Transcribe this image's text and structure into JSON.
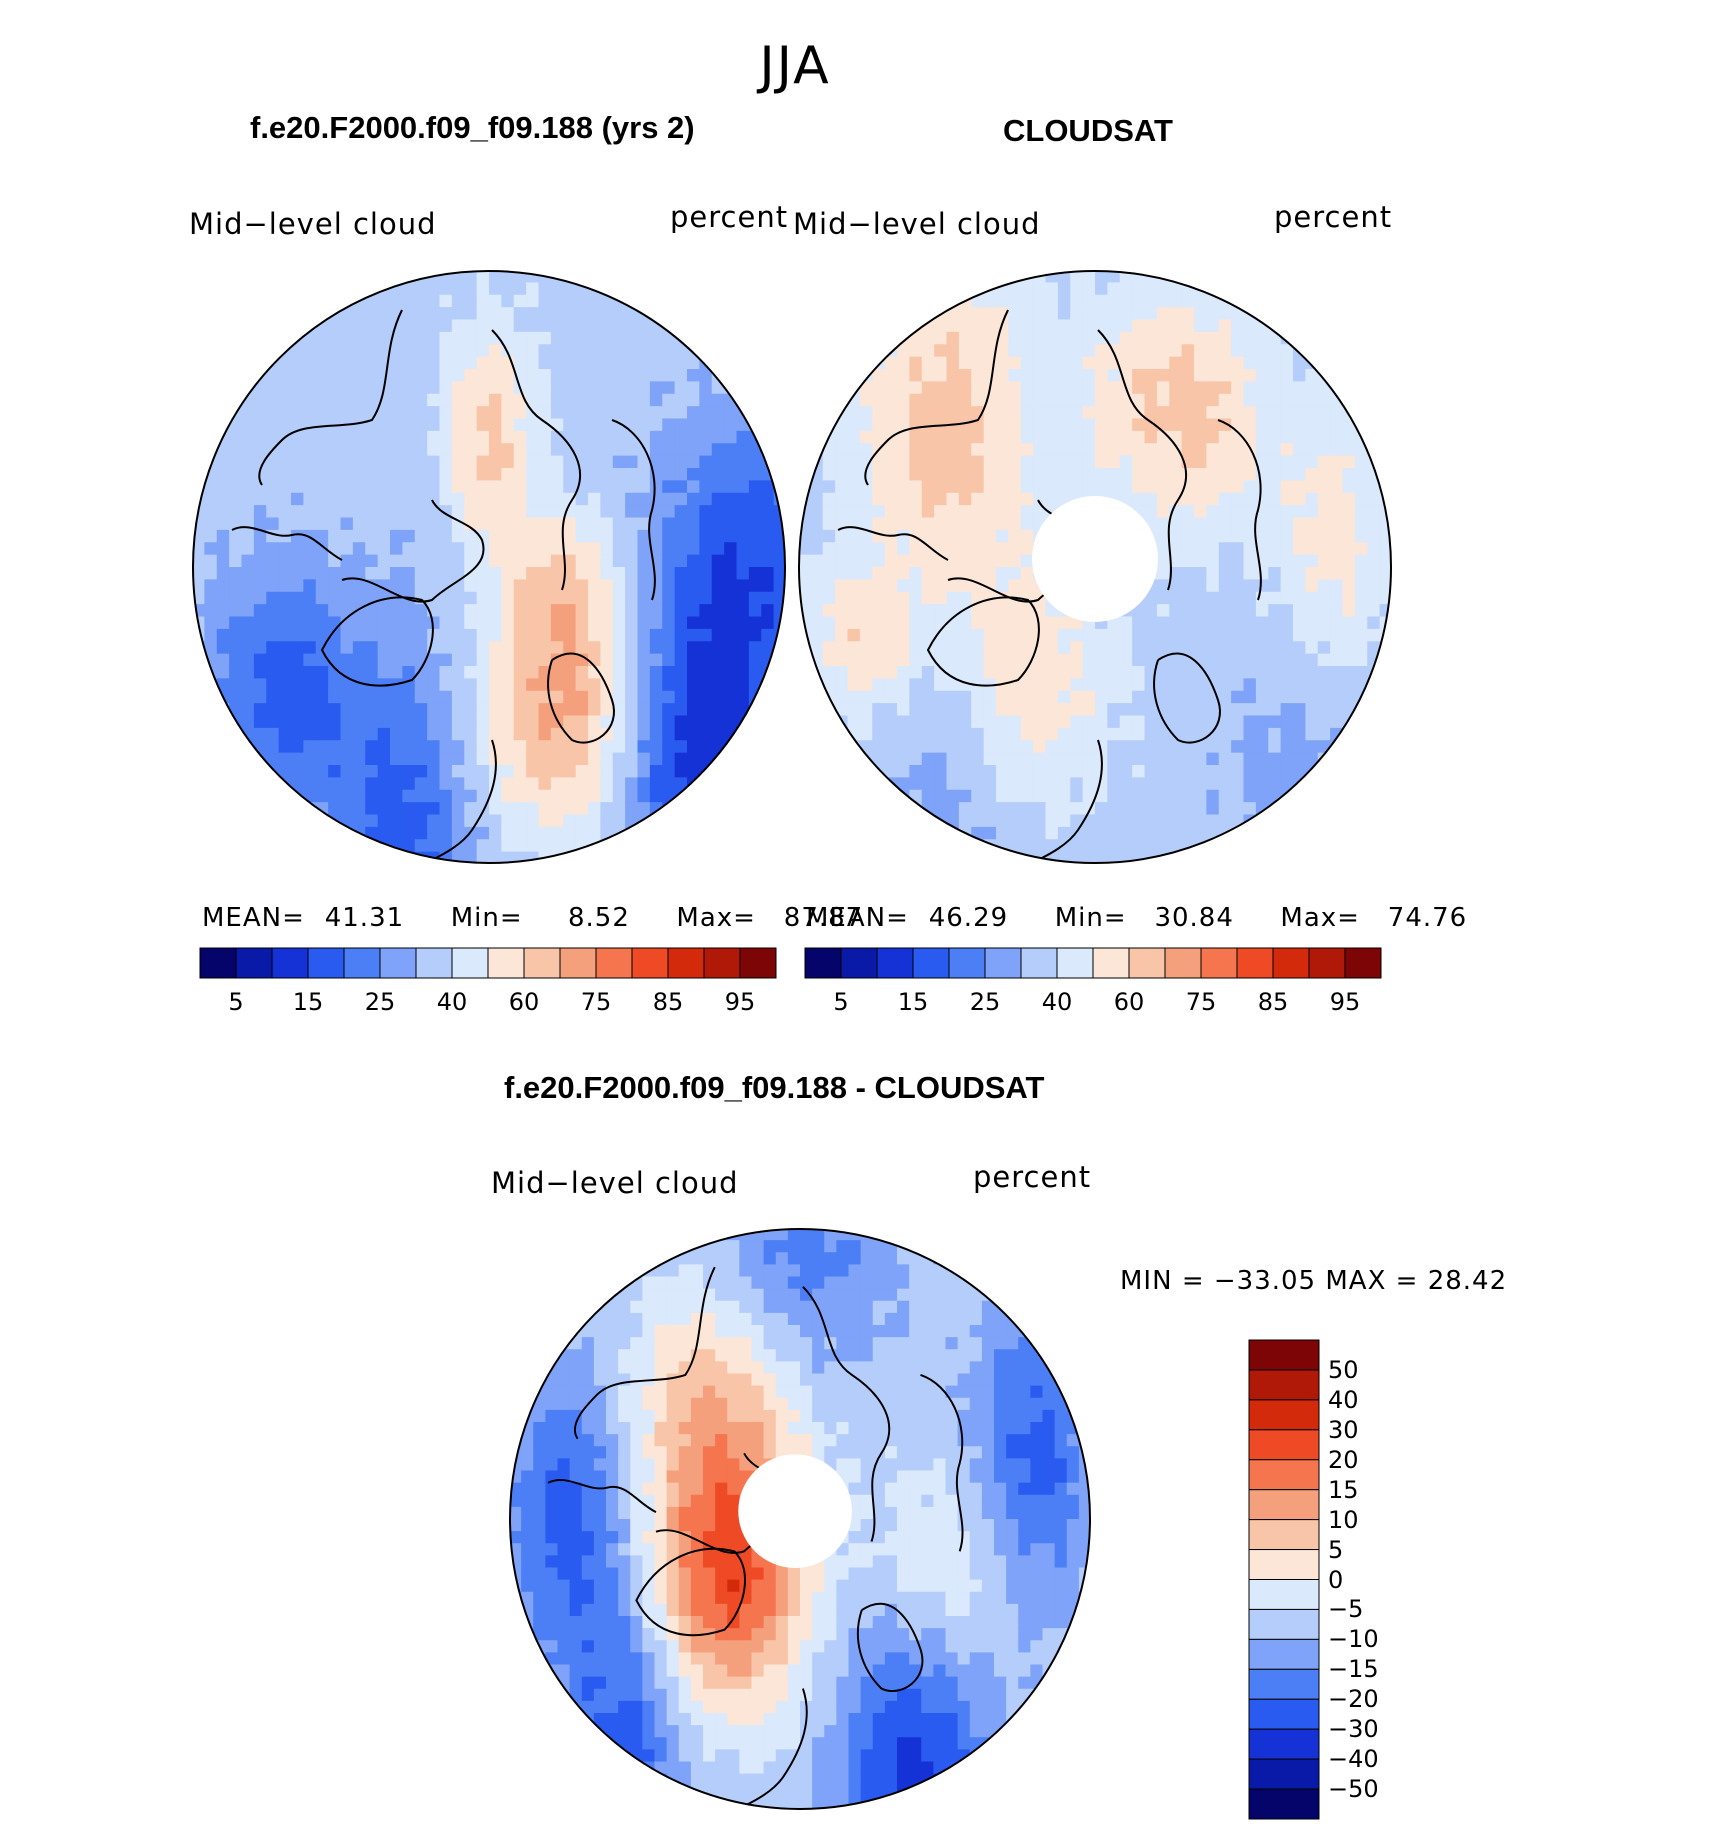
{
  "figure": {
    "season": "JJA"
  },
  "colors": {
    "scale15": [
      "#04046a",
      "#0a1aa8",
      "#1432d6",
      "#2a5bf0",
      "#4c7ff6",
      "#7ea3f8",
      "#b4cdfa",
      "#dbe9fc",
      "#fbe6d8",
      "#f8c5a8",
      "#f5a07c",
      "#f5754e",
      "#ef4a26",
      "#d42a0c",
      "#b01808",
      "#7e0505"
    ],
    "diff15": [
      "#04046a",
      "#0a1aa8",
      "#1432d6",
      "#2a5bf0",
      "#4c7ff6",
      "#7ea3f8",
      "#b4cdfa",
      "#dbe9fc",
      "#fbe6d8",
      "#f8c5a8",
      "#f5a07c",
      "#f5754e",
      "#ef4a26",
      "#d42a0c",
      "#b01808",
      "#7e0505"
    ]
  },
  "panels": [
    {
      "title": "f.e20.F2000.f09_f09.188 (yrs 2)",
      "left_label": "Mid−level cloud",
      "right_label": "percent",
      "stats": {
        "mean_label": "MEAN=",
        "mean": "41.31",
        "min_label": "Min=",
        "min": "8.52",
        "max_label": "Max=",
        "max": "87.87"
      },
      "colorbar_ticks": [
        "5",
        "15",
        "25",
        "40",
        "60",
        "75",
        "85",
        "95"
      ]
    },
    {
      "title": "CLOUDSAT",
      "left_label": "Mid−level cloud",
      "right_label": "percent",
      "stats": {
        "mean_label": "MEAN=",
        "mean": "46.29",
        "min_label": "Min=",
        "min": "30.84",
        "max_label": "Max=",
        "max": "74.76"
      },
      "colorbar_ticks": [
        "5",
        "15",
        "25",
        "40",
        "60",
        "75",
        "85",
        "95"
      ]
    },
    {
      "title": "f.e20.F2000.f09_f09.188 - CLOUDSAT",
      "left_label": "Mid−level cloud",
      "right_label": "percent",
      "stats": {
        "text": "MIN = −33.05 MAX =   28.42"
      },
      "colorbar_ticks": [
        "50",
        "40",
        "30",
        "20",
        "15",
        "10",
        "5",
        "0",
        "−5",
        "−10",
        "−15",
        "−20",
        "−30",
        "−40",
        "−50"
      ]
    }
  ],
  "map_fields": [
    {
      "base": 6,
      "blobs": [
        [
          0.62,
          0.72,
          0.14,
          0.23,
          4
        ],
        [
          0.5,
          0.3,
          0.08,
          0.2,
          3
        ],
        [
          0.55,
          0.52,
          0.15,
          0.2,
          -1
        ],
        [
          0.62,
          0.52,
          0.1,
          0.13,
          2
        ],
        [
          0.35,
          0.95,
          0.12,
          0.3,
          -3
        ],
        [
          0.85,
          0.85,
          0.13,
          0.3,
          -4
        ],
        [
          0.15,
          0.7,
          0.12,
          0.2,
          -3
        ],
        [
          0.95,
          0.5,
          0.16,
          0.25,
          -3
        ],
        [
          0.6,
          0.1,
          0.15,
          0.2,
          0
        ]
      ]
    },
    {
      "base": 6,
      "blobs": [
        [
          0.25,
          0.27,
          0.15,
          0.3,
          3
        ],
        [
          0.58,
          0.22,
          0.12,
          0.2,
          2
        ],
        [
          0.7,
          0.25,
          0.1,
          0.2,
          2
        ],
        [
          0.9,
          0.45,
          0.1,
          0.25,
          2
        ],
        [
          0.4,
          0.7,
          0.13,
          0.2,
          2
        ],
        [
          0.1,
          0.62,
          0.1,
          0.12,
          2
        ],
        [
          0.85,
          0.85,
          0.13,
          0.25,
          -1
        ],
        [
          0.25,
          0.9,
          0.1,
          0.3,
          -1
        ]
      ]
    },
    {
      "base": 6,
      "blobs": [
        [
          0.38,
          0.6,
          0.13,
          0.22,
          6
        ],
        [
          0.35,
          0.3,
          0.14,
          0.2,
          3
        ],
        [
          0.75,
          0.6,
          0.13,
          0.2,
          2
        ],
        [
          0.1,
          0.5,
          0.1,
          0.25,
          -3
        ],
        [
          0.9,
          0.4,
          0.1,
          0.25,
          -3
        ],
        [
          0.7,
          0.95,
          0.13,
          0.3,
          -4
        ],
        [
          0.2,
          0.9,
          0.1,
          0.25,
          -3
        ],
        [
          0.5,
          0.05,
          0.15,
          0.2,
          -2
        ]
      ]
    }
  ]
}
